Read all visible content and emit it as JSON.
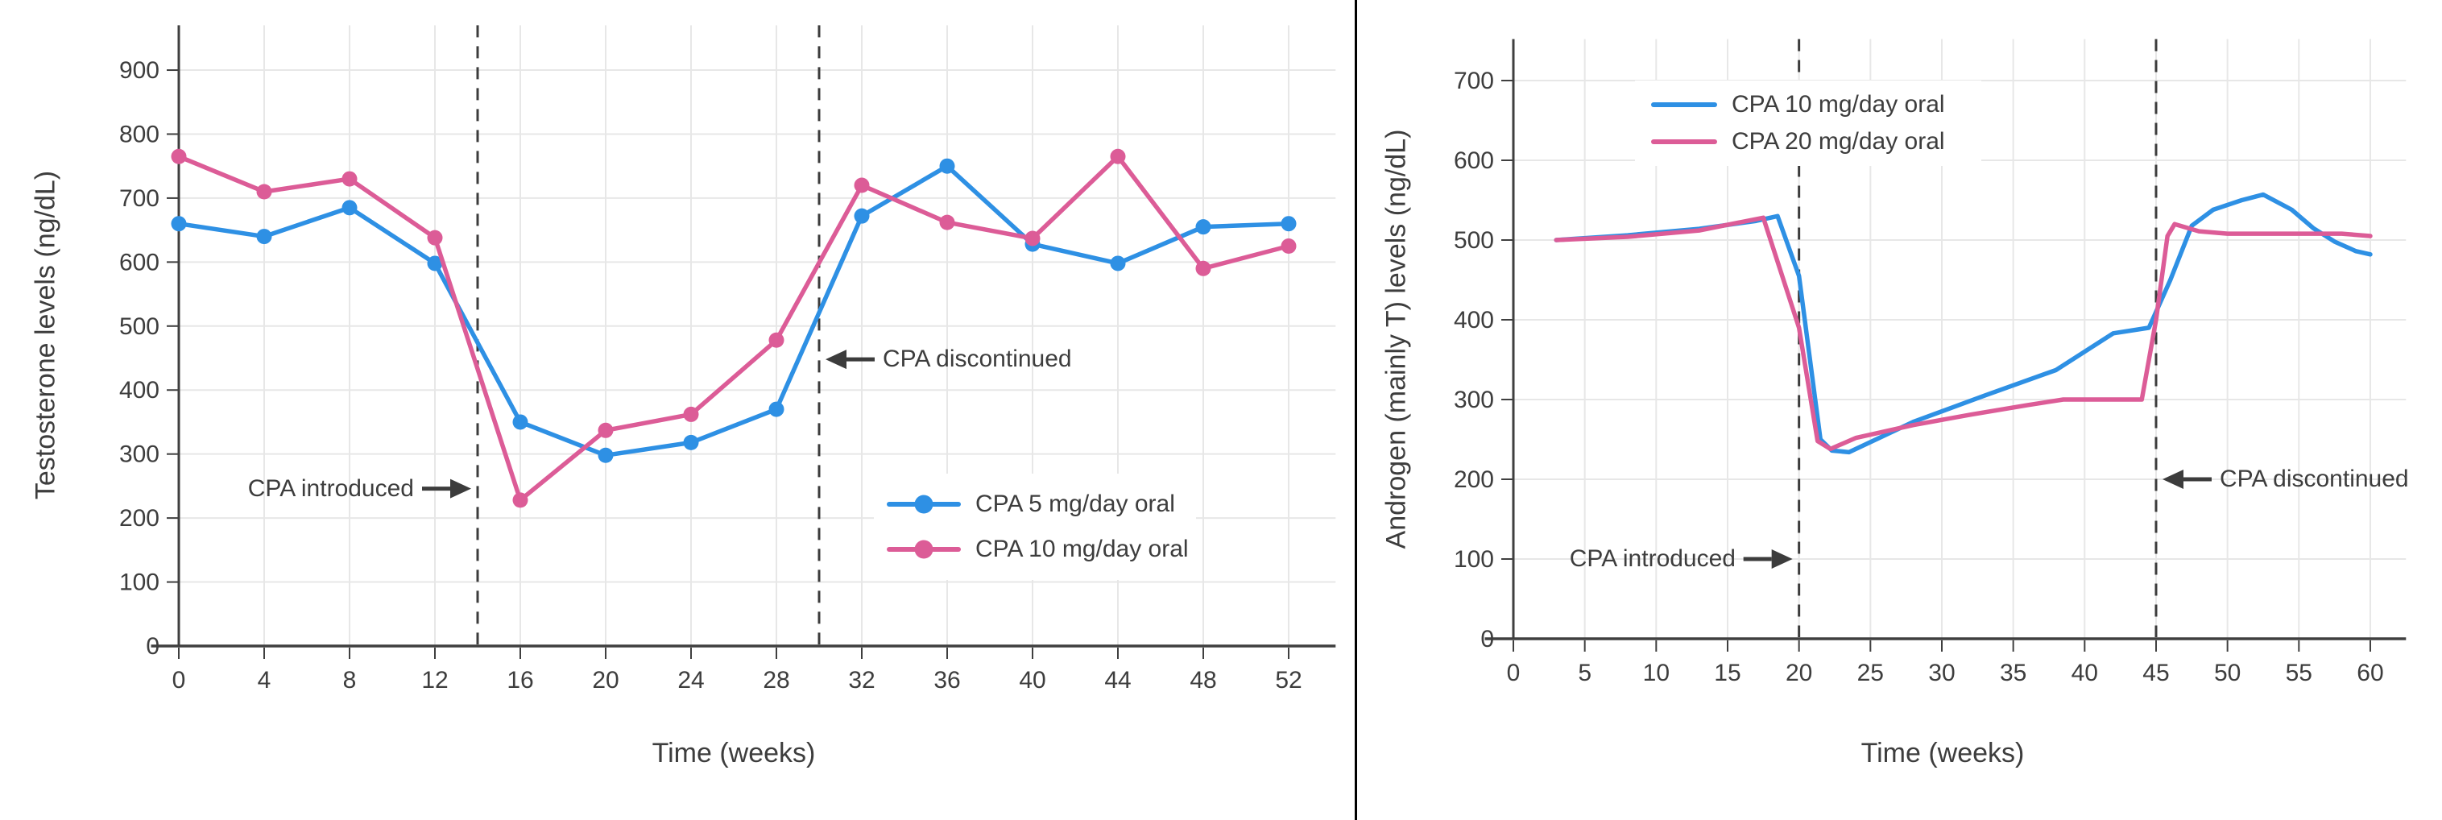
{
  "page": {
    "background": "#ffffff",
    "divider_color": "#000000",
    "text_color": "#3d3d3d",
    "grid_color": "#e7e7e7",
    "event_line_color": "#3c3c3c"
  },
  "chart_data": [
    {
      "type": "line",
      "title": "",
      "xlabel": "Time (weeks)",
      "ylabel": "Testosterone levels (ng/dL)",
      "xlim": [
        -1.3,
        54.2
      ],
      "ylim": [
        0,
        970
      ],
      "xticks": [
        0,
        4,
        8,
        12,
        16,
        20,
        24,
        28,
        32,
        36,
        40,
        44,
        48,
        52
      ],
      "yticks": [
        0,
        100,
        200,
        300,
        400,
        500,
        600,
        700,
        800,
        900
      ],
      "grid": true,
      "legend_position": "inside lower right",
      "series": [
        {
          "name": "CPA 5 mg/day oral",
          "color": "#2E90E4",
          "markers": true,
          "x": [
            0,
            4,
            8,
            12,
            16,
            20,
            24,
            28,
            32,
            36,
            40,
            44,
            48,
            52
          ],
          "y": [
            660,
            640,
            685,
            598,
            350,
            298,
            318,
            370,
            672,
            750,
            628,
            598,
            655,
            660
          ]
        },
        {
          "name": "CPA 10 mg/day oral",
          "color": "#DC5C97",
          "markers": true,
          "x": [
            0,
            4,
            8,
            12,
            16,
            20,
            24,
            28,
            32,
            36,
            40,
            44,
            48,
            52
          ],
          "y": [
            765,
            710,
            730,
            638,
            228,
            337,
            362,
            478,
            720,
            662,
            637,
            765,
            590,
            625
          ]
        }
      ],
      "vlines": [
        {
          "x": 14,
          "style": "dashed"
        },
        {
          "x": 30,
          "style": "dashed"
        }
      ],
      "annotations": [
        {
          "text": "CPA introduced",
          "arrow": "right",
          "target_x": 14,
          "y": 246
        },
        {
          "text": "CPA discontinued",
          "arrow": "left",
          "target_x": 30,
          "y": 448
        }
      ]
    },
    {
      "type": "line",
      "title": "",
      "xlabel": "Time (weeks)",
      "ylabel": "Androgen (mainly T) levels (ng/dL)",
      "xlim": [
        -2,
        62.5
      ],
      "ylim": [
        0,
        752
      ],
      "xticks": [
        0,
        5,
        10,
        15,
        20,
        25,
        30,
        35,
        40,
        45,
        50,
        55,
        60
      ],
      "yticks": [
        0,
        100,
        200,
        300,
        400,
        500,
        600,
        700
      ],
      "grid": true,
      "legend_position": "inside upper left",
      "series": [
        {
          "name": "CPA 10 mg/day oral",
          "color": "#2E90E4",
          "markers": false,
          "x": [
            3,
            8,
            13,
            17,
            18.5,
            20,
            21.5,
            22.3,
            23.5,
            28,
            33,
            38,
            42,
            44.5,
            46,
            47.5,
            49,
            51,
            52.5,
            54.5,
            56,
            57.5,
            59,
            60
          ],
          "y": [
            500,
            506,
            514,
            524,
            530,
            455,
            250,
            236,
            234,
            272,
            305,
            337,
            383,
            390,
            450,
            518,
            538,
            550,
            557,
            538,
            515,
            498,
            486,
            482
          ]
        },
        {
          "name": "CPA 20 mg/day oral",
          "color": "#DC5C97",
          "markers": false,
          "x": [
            3,
            8,
            13,
            17.5,
            20,
            21.3,
            22.2,
            24,
            28,
            32,
            36,
            38.5,
            44,
            45,
            45.8,
            46.3,
            48,
            50,
            54,
            58,
            60
          ],
          "y": [
            500,
            504,
            512,
            528,
            390,
            248,
            238,
            252,
            268,
            281,
            293,
            300,
            300,
            400,
            505,
            520,
            511,
            508,
            508,
            508,
            505
          ]
        }
      ],
      "vlines": [
        {
          "x": 20,
          "style": "dashed"
        },
        {
          "x": 45,
          "style": "dashed"
        }
      ],
      "annotations": [
        {
          "text": "CPA introduced",
          "arrow": "right",
          "target_x": 20,
          "y": 100
        },
        {
          "text": "CPA discontinued",
          "arrow": "left",
          "target_x": 45,
          "y": 200
        }
      ]
    }
  ]
}
